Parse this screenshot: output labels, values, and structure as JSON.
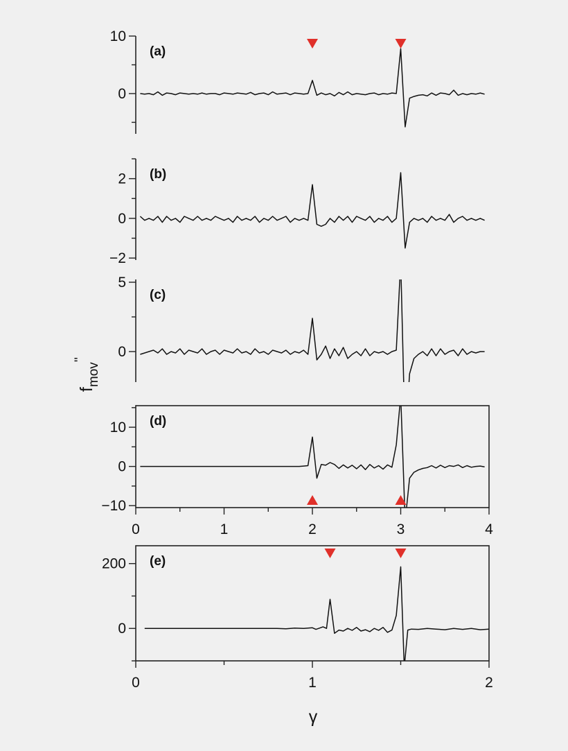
{
  "figure": {
    "ylabel_main": "f",
    "ylabel_sub": "mov",
    "ylabel_sup": "''",
    "xlabel": "γ"
  },
  "colors": {
    "line": "#111111",
    "marker": "#e0302a",
    "frame": "#222222",
    "background": "#f0f0f0"
  },
  "chart_data": [
    {
      "type": "line",
      "panel_label": "(a)",
      "xlim": [
        0,
        4
      ],
      "ylim": [
        -7,
        10
      ],
      "yticks": [
        0,
        10
      ],
      "ytick_labels": [
        "0",
        "10"
      ],
      "markers": [
        {
          "x": 2.0,
          "shape": "triangle-down",
          "position": "top"
        },
        {
          "x": 3.0,
          "shape": "triangle-down",
          "position": "top"
        }
      ],
      "x": [
        0.05,
        0.1,
        0.15,
        0.2,
        0.25,
        0.3,
        0.35,
        0.4,
        0.45,
        0.5,
        0.55,
        0.6,
        0.65,
        0.7,
        0.75,
        0.8,
        0.85,
        0.9,
        0.95,
        1.0,
        1.05,
        1.1,
        1.15,
        1.2,
        1.25,
        1.3,
        1.35,
        1.4,
        1.45,
        1.5,
        1.55,
        1.6,
        1.65,
        1.7,
        1.75,
        1.8,
        1.85,
        1.9,
        1.95,
        2.0,
        2.05,
        2.1,
        2.15,
        2.2,
        2.25,
        2.3,
        2.35,
        2.4,
        2.45,
        2.5,
        2.55,
        2.6,
        2.65,
        2.7,
        2.75,
        2.8,
        2.85,
        2.9,
        2.95,
        3.0,
        3.05,
        3.1,
        3.15,
        3.2,
        3.25,
        3.3,
        3.35,
        3.4,
        3.45,
        3.5,
        3.55,
        3.6,
        3.65,
        3.7,
        3.75,
        3.8,
        3.85,
        3.9,
        3.95
      ],
      "y": [
        0,
        -0.1,
        0,
        -0.2,
        0.3,
        -0.3,
        0.1,
        0,
        -0.2,
        0.1,
        0,
        -0.1,
        0,
        -0.1,
        0.1,
        -0.1,
        0,
        0,
        -0.2,
        0.1,
        0,
        -0.1,
        0.1,
        0,
        -0.1,
        0.2,
        -0.2,
        0,
        0.1,
        -0.2,
        0.3,
        -0.1,
        0,
        0.1,
        -0.2,
        0.1,
        0,
        -0.1,
        0,
        2.3,
        -0.3,
        0.1,
        -0.2,
        0,
        -0.4,
        0.2,
        -0.2,
        0.3,
        -0.2,
        0,
        -0.1,
        -0.2,
        0,
        0.1,
        -0.2,
        0,
        -0.1,
        0.1,
        0,
        7.8,
        -5.8,
        -0.8,
        -0.5,
        -0.3,
        -0.2,
        -0.4,
        0.1,
        -0.3,
        0.1,
        0,
        -0.2,
        0.6,
        -0.3,
        0,
        -0.2,
        0,
        -0.1,
        0.1,
        -0.1
      ]
    },
    {
      "type": "line",
      "panel_label": "(b)",
      "xlim": [
        0,
        4
      ],
      "ylim": [
        -2.1,
        3.0
      ],
      "yticks": [
        -2,
        0,
        2
      ],
      "ytick_labels": [
        "−2",
        "0",
        "2"
      ],
      "markers": [],
      "x": [
        0.05,
        0.1,
        0.15,
        0.2,
        0.25,
        0.3,
        0.35,
        0.4,
        0.45,
        0.5,
        0.55,
        0.6,
        0.65,
        0.7,
        0.75,
        0.8,
        0.85,
        0.9,
        0.95,
        1.0,
        1.05,
        1.1,
        1.15,
        1.2,
        1.25,
        1.3,
        1.35,
        1.4,
        1.45,
        1.5,
        1.55,
        1.6,
        1.65,
        1.7,
        1.75,
        1.8,
        1.85,
        1.9,
        1.95,
        2.0,
        2.05,
        2.1,
        2.15,
        2.2,
        2.25,
        2.3,
        2.35,
        2.4,
        2.45,
        2.5,
        2.55,
        2.6,
        2.65,
        2.7,
        2.75,
        2.8,
        2.85,
        2.9,
        2.95,
        3.0,
        3.05,
        3.1,
        3.15,
        3.2,
        3.25,
        3.3,
        3.35,
        3.4,
        3.45,
        3.5,
        3.55,
        3.6,
        3.65,
        3.7,
        3.75,
        3.8,
        3.85,
        3.9,
        3.95
      ],
      "y": [
        0.1,
        -0.1,
        0,
        -0.1,
        0.1,
        -0.2,
        0.1,
        -0.1,
        0,
        -0.2,
        0.1,
        0,
        -0.1,
        0.1,
        -0.1,
        0,
        -0.1,
        0.1,
        0,
        -0.1,
        0,
        -0.2,
        0.1,
        -0.1,
        0,
        -0.1,
        0.1,
        -0.2,
        0,
        -0.1,
        0.1,
        -0.1,
        0,
        0.1,
        -0.2,
        0,
        -0.1,
        0,
        -0.1,
        1.7,
        -0.3,
        -0.4,
        -0.3,
        0,
        -0.2,
        0.1,
        -0.1,
        0.1,
        -0.2,
        0.1,
        0,
        -0.1,
        0.1,
        -0.2,
        0,
        -0.1,
        0.1,
        -0.2,
        0,
        2.3,
        -1.5,
        -0.2,
        0,
        -0.1,
        0,
        -0.2,
        0.1,
        -0.1,
        0,
        -0.1,
        0.2,
        -0.2,
        0,
        0.1,
        -0.1,
        0,
        -0.1,
        0,
        -0.1
      ]
    },
    {
      "type": "line",
      "panel_label": "(c)",
      "xlim": [
        0,
        4
      ],
      "ylim": [
        -2.2,
        5.2
      ],
      "yticks": [
        0,
        5
      ],
      "ytick_labels": [
        "0",
        "5"
      ],
      "markers": [],
      "x": [
        0.05,
        0.1,
        0.15,
        0.2,
        0.25,
        0.3,
        0.35,
        0.4,
        0.45,
        0.5,
        0.55,
        0.6,
        0.65,
        0.7,
        0.75,
        0.8,
        0.85,
        0.9,
        0.95,
        1.0,
        1.05,
        1.1,
        1.15,
        1.2,
        1.25,
        1.3,
        1.35,
        1.4,
        1.45,
        1.5,
        1.55,
        1.6,
        1.65,
        1.7,
        1.75,
        1.8,
        1.85,
        1.9,
        1.95,
        2.0,
        2.05,
        2.1,
        2.15,
        2.2,
        2.25,
        2.3,
        2.35,
        2.4,
        2.45,
        2.5,
        2.55,
        2.6,
        2.65,
        2.7,
        2.75,
        2.8,
        2.85,
        2.9,
        2.95,
        3.0,
        3.05,
        3.1,
        3.15,
        3.2,
        3.25,
        3.3,
        3.35,
        3.4,
        3.45,
        3.5,
        3.55,
        3.6,
        3.65,
        3.7,
        3.75,
        3.8,
        3.85,
        3.9,
        3.95
      ],
      "y": [
        -0.2,
        -0.1,
        0,
        0.1,
        -0.1,
        0.2,
        -0.2,
        0,
        -0.1,
        0.2,
        -0.2,
        0.1,
        0,
        -0.1,
        0.2,
        -0.2,
        0,
        0.1,
        -0.2,
        0.1,
        0,
        -0.1,
        0.2,
        -0.1,
        0,
        -0.2,
        0.2,
        -0.1,
        0,
        -0.2,
        0.1,
        0,
        -0.1,
        0.1,
        -0.2,
        0,
        -0.1,
        0.1,
        -0.2,
        2.4,
        -0.6,
        -0.2,
        0.4,
        -0.5,
        0.2,
        -0.3,
        0.3,
        -0.5,
        -0.2,
        0,
        -0.3,
        0.2,
        -0.3,
        0,
        -0.1,
        0,
        -0.2,
        0,
        0.1,
        6.5,
        -6.5,
        -1.6,
        -0.5,
        -0.2,
        0,
        -0.3,
        0.2,
        -0.3,
        0.2,
        -0.2,
        0,
        0.1,
        -0.3,
        0.2,
        -0.2,
        0,
        -0.1,
        0,
        0
      ]
    },
    {
      "type": "line",
      "panel_label": "(d)",
      "xlim": [
        0,
        4
      ],
      "ylim": [
        -10.5,
        15.5
      ],
      "yticks": [
        -10,
        0,
        10
      ],
      "ytick_labels": [
        "−10",
        "0",
        "10"
      ],
      "markers": [
        {
          "x": 2.0,
          "shape": "triangle-up",
          "position": "bottom"
        },
        {
          "x": 3.0,
          "shape": "triangle-up",
          "position": "bottom"
        }
      ],
      "x": [
        0.05,
        0.1,
        0.15,
        0.2,
        0.25,
        0.3,
        0.35,
        0.4,
        0.45,
        0.5,
        0.55,
        0.6,
        0.65,
        0.7,
        0.75,
        0.8,
        0.85,
        0.9,
        0.95,
        1.0,
        1.05,
        1.1,
        1.15,
        1.2,
        1.25,
        1.3,
        1.35,
        1.4,
        1.45,
        1.5,
        1.55,
        1.6,
        1.65,
        1.7,
        1.75,
        1.8,
        1.85,
        1.9,
        1.95,
        2.0,
        2.05,
        2.1,
        2.15,
        2.2,
        2.25,
        2.3,
        2.35,
        2.4,
        2.45,
        2.5,
        2.55,
        2.6,
        2.65,
        2.7,
        2.75,
        2.8,
        2.85,
        2.9,
        2.95,
        3.0,
        3.05,
        3.1,
        3.15,
        3.2,
        3.25,
        3.3,
        3.35,
        3.4,
        3.45,
        3.5,
        3.55,
        3.6,
        3.65,
        3.7,
        3.75,
        3.8,
        3.85,
        3.9,
        3.95
      ],
      "y": [
        0,
        0,
        0,
        0,
        0,
        0,
        0,
        0,
        0,
        0,
        0,
        0,
        0,
        0,
        0,
        0,
        0,
        0,
        0,
        0,
        0,
        0,
        0,
        0,
        0,
        0,
        0,
        0,
        0,
        0,
        0,
        0,
        0,
        0,
        0,
        0,
        0,
        0.1,
        0.2,
        7.5,
        -3.0,
        0.5,
        0.3,
        1.0,
        0.5,
        -0.5,
        0.4,
        -0.4,
        0.3,
        -0.6,
        0.4,
        -0.8,
        0.5,
        -0.4,
        0.2,
        -0.7,
        0.4,
        -0.2,
        5.5,
        18,
        -14,
        -3.0,
        -1.5,
        -0.9,
        -0.5,
        -0.3,
        0.2,
        -0.4,
        0.3,
        -0.3,
        0.2,
        0,
        0.4,
        -0.3,
        0.2,
        -0.2,
        0,
        0.1,
        -0.1
      ]
    },
    {
      "type": "line",
      "panel_label": "(e)",
      "xlim": [
        0,
        2
      ],
      "ylim": [
        -100,
        255
      ],
      "yticks": [
        0,
        200
      ],
      "ytick_labels": [
        "0",
        "200"
      ],
      "markers": [
        {
          "x": 1.1,
          "shape": "triangle-down",
          "position": "top"
        },
        {
          "x": 1.5,
          "shape": "triangle-down",
          "position": "top"
        }
      ],
      "x": [
        0.05,
        0.1,
        0.15,
        0.2,
        0.25,
        0.3,
        0.35,
        0.4,
        0.45,
        0.5,
        0.55,
        0.6,
        0.65,
        0.7,
        0.75,
        0.8,
        0.85,
        0.9,
        0.95,
        1.0,
        1.02,
        1.04,
        1.06,
        1.08,
        1.1,
        1.125,
        1.15,
        1.175,
        1.2,
        1.225,
        1.25,
        1.275,
        1.3,
        1.325,
        1.35,
        1.375,
        1.4,
        1.425,
        1.45,
        1.475,
        1.5,
        1.52,
        1.54,
        1.56,
        1.6,
        1.65,
        1.7,
        1.75,
        1.8,
        1.85,
        1.9,
        1.95,
        2.0
      ],
      "y": [
        0,
        0,
        0,
        0,
        0,
        0,
        0,
        0,
        0,
        0,
        0,
        0,
        0,
        0,
        0,
        0,
        -1,
        1,
        0,
        2,
        -3,
        1,
        5,
        0,
        90,
        -15,
        -5,
        -8,
        0,
        -6,
        3,
        -8,
        -4,
        -10,
        0,
        -6,
        3,
        -12,
        -5,
        40,
        190,
        -120,
        -5,
        -2,
        -3,
        0,
        -2,
        -4,
        0,
        -3,
        0,
        -4,
        -2
      ]
    }
  ]
}
